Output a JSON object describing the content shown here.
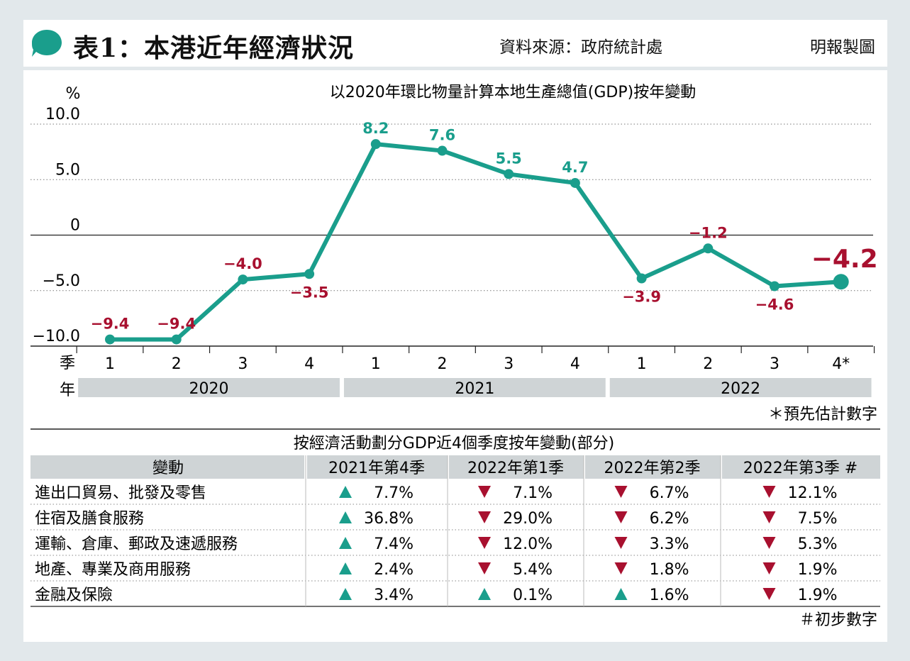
{
  "header": {
    "title": "表1：本港近年經濟狀況",
    "source": "資料來源：政府統計處",
    "credit": "明報製圖"
  },
  "colors": {
    "line": "#1a9e8c",
    "negative": "#a8102f",
    "positive": "#1a9e8c",
    "band": "#cfd4d6",
    "bubble": "#1a9e8c"
  },
  "chart_data": {
    "type": "line",
    "title": "以2020年環比物量計算本地生產總值(GDP)按年變動",
    "ylabel": "%",
    "ylim": [
      -10,
      10
    ],
    "yticks": [
      "10.0",
      "5.0",
      "0",
      "−5.0",
      "−10.0"
    ],
    "yticks_values": [
      10,
      5,
      0,
      -5,
      -10
    ],
    "x_row_label": "季",
    "year_row_label": "年",
    "quarters": [
      "1",
      "2",
      "3",
      "4",
      "1",
      "2",
      "3",
      "4",
      "1",
      "2",
      "3",
      "4*"
    ],
    "years": [
      "2020",
      "2021",
      "2022"
    ],
    "series": [
      {
        "values": [
          -9.4,
          -9.4,
          -4.0,
          -3.5,
          8.2,
          7.6,
          5.5,
          4.7,
          -3.9,
          -1.2,
          -4.6,
          -4.2
        ],
        "labels": [
          "−9.4",
          "−9.4",
          "−4.0",
          "−3.5",
          "8.2",
          "7.6",
          "5.5",
          "4.7",
          "−3.9",
          "−1.2",
          "−4.6",
          "−4.2"
        ]
      }
    ],
    "footnote": "＊預先估計數字"
  },
  "table": {
    "title": "按經濟活動劃分GDP近4個季度按年變動(部分)",
    "headers": [
      "變動",
      "2021年第4季",
      "2022年第1季",
      "2022年第2季",
      "2022年第3季 #"
    ],
    "rows": [
      {
        "label": "進出口貿易、批發及零售",
        "cells": [
          {
            "dir": "up",
            "value": "7.7%"
          },
          {
            "dir": "down",
            "value": "7.1%"
          },
          {
            "dir": "down",
            "value": "6.7%"
          },
          {
            "dir": "down",
            "value": "12.1%"
          }
        ]
      },
      {
        "label": "住宿及膳食服務",
        "cells": [
          {
            "dir": "up",
            "value": "36.8%"
          },
          {
            "dir": "down",
            "value": "29.0%"
          },
          {
            "dir": "down",
            "value": "6.2%"
          },
          {
            "dir": "down",
            "value": "7.5%"
          }
        ]
      },
      {
        "label": "運輸、倉庫、郵政及速遞服務",
        "cells": [
          {
            "dir": "up",
            "value": "7.4%"
          },
          {
            "dir": "down",
            "value": "12.0%"
          },
          {
            "dir": "down",
            "value": "3.3%"
          },
          {
            "dir": "down",
            "value": "5.3%"
          }
        ]
      },
      {
        "label": "地產、專業及商用服務",
        "cells": [
          {
            "dir": "up",
            "value": "2.4%"
          },
          {
            "dir": "down",
            "value": "5.4%"
          },
          {
            "dir": "down",
            "value": "1.8%"
          },
          {
            "dir": "down",
            "value": "1.9%"
          }
        ]
      },
      {
        "label": "金融及保險",
        "cells": [
          {
            "dir": "up",
            "value": "3.4%"
          },
          {
            "dir": "up",
            "value": "0.1%"
          },
          {
            "dir": "up",
            "value": "1.6%"
          },
          {
            "dir": "down",
            "value": "1.9%"
          }
        ]
      }
    ],
    "footnote": "＃初步數字"
  }
}
